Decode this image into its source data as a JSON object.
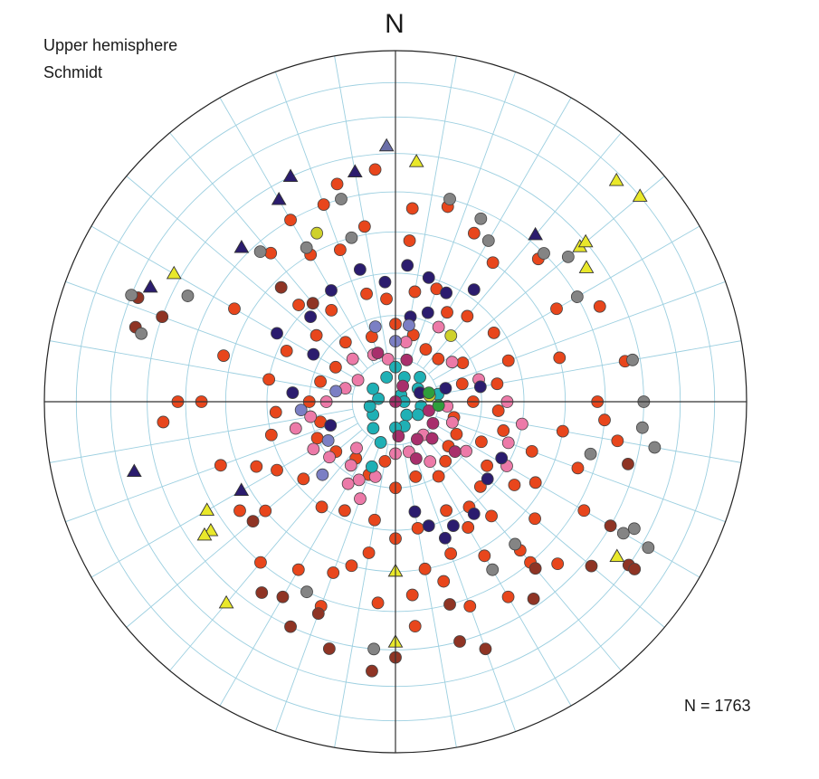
{
  "chart_data": {
    "type": "scatter",
    "title": "",
    "north_label": "N",
    "projection": [
      "Upper hemisphere",
      "Schmidt"
    ],
    "n_label": "N = 1763",
    "coordinate_system": "azimuth_deg (clockwise from north) / plunge_deg",
    "grid": true,
    "grid_style": "polar net, 10 degree intervals",
    "series": [
      {
        "marker": "circle",
        "color": "#e8461c",
        "points": [
          [
            315,
            58
          ],
          [
            330,
            50
          ],
          [
            300,
            46
          ],
          [
            285,
            48
          ],
          [
            270,
            44
          ],
          [
            250,
            46
          ],
          [
            235,
            45
          ],
          [
            220,
            40
          ],
          [
            210,
            44
          ],
          [
            200,
            47
          ],
          [
            195,
            50
          ],
          [
            185,
            42
          ],
          [
            175,
            44
          ],
          [
            165,
            46
          ],
          [
            160,
            52
          ],
          [
            150,
            48
          ],
          [
            140,
            44
          ],
          [
            130,
            47
          ],
          [
            120,
            52
          ],
          [
            110,
            56
          ],
          [
            100,
            50
          ],
          [
            90,
            42
          ],
          [
            75,
            50
          ],
          [
            60,
            46
          ],
          [
            45,
            42
          ],
          [
            35,
            50
          ],
          [
            25,
            46
          ],
          [
            15,
            42
          ],
          [
            5,
            44
          ],
          [
            350,
            48
          ],
          [
            340,
            52
          ],
          [
            325,
            64
          ],
          [
            310,
            66
          ],
          [
            295,
            62
          ],
          [
            280,
            60
          ],
          [
            265,
            62
          ],
          [
            255,
            60
          ],
          [
            240,
            58
          ],
          [
            230,
            62
          ],
          [
            215,
            60
          ],
          [
            205,
            62
          ],
          [
            190,
            62
          ],
          [
            180,
            58
          ],
          [
            170,
            60
          ],
          [
            155,
            62
          ],
          [
            145,
            60
          ],
          [
            135,
            62
          ],
          [
            125,
            64
          ],
          [
            115,
            68
          ],
          [
            105,
            64
          ],
          [
            95,
            66
          ],
          [
            80,
            66
          ],
          [
            70,
            62
          ],
          [
            55,
            62
          ],
          [
            40,
            64
          ],
          [
            30,
            66
          ],
          [
            20,
            62
          ],
          [
            10,
            64
          ],
          [
            355,
            66
          ],
          [
            345,
            64
          ],
          [
            320,
            72
          ],
          [
            300,
            74
          ],
          [
            285,
            72
          ],
          [
            270,
            70
          ],
          [
            255,
            72
          ],
          [
            245,
            70
          ],
          [
            230,
            72
          ],
          [
            215,
            74
          ],
          [
            200,
            72
          ],
          [
            190,
            76
          ],
          [
            180,
            70
          ],
          [
            165,
            72
          ],
          [
            150,
            70
          ],
          [
            140,
            72
          ],
          [
            130,
            74
          ],
          [
            118,
            74
          ],
          [
            105,
            76
          ],
          [
            90,
            72
          ],
          [
            75,
            74
          ],
          [
            60,
            72
          ],
          [
            45,
            76
          ],
          [
            30,
            76
          ],
          [
            15,
            74
          ],
          [
            0,
            72
          ],
          [
            340,
            74
          ],
          [
            270,
            38
          ],
          [
            265,
            34
          ],
          [
            160,
            38
          ],
          [
            150,
            36
          ],
          [
            140,
            40
          ],
          [
            200,
            38
          ],
          [
            175,
            36
          ],
          [
            110,
            44
          ],
          [
            95,
            40
          ],
          [
            355,
            34
          ],
          [
            345,
            36
          ],
          [
            340,
            40
          ],
          [
            65,
            36
          ],
          [
            80,
            34
          ],
          [
            120,
            38
          ],
          [
            135,
            35
          ],
          [
            100,
            36
          ],
          [
            5,
            52
          ],
          [
            320,
            44
          ],
          [
            330,
            40
          ],
          [
            230,
            50
          ],
          [
            245,
            54
          ],
          [
            190,
            54
          ],
          [
            170,
            50
          ],
          [
            125,
            56
          ],
          [
            140,
            55
          ],
          [
            150,
            56
          ]
        ]
      },
      {
        "marker": "circle",
        "color": "#ec7aa8",
        "points": [
          [
            240,
            68
          ],
          [
            230,
            70
          ],
          [
            220,
            76
          ],
          [
            205,
            70
          ],
          [
            195,
            72
          ],
          [
            180,
            78
          ],
          [
            165,
            78
          ],
          [
            150,
            74
          ],
          [
            140,
            80
          ],
          [
            125,
            70
          ],
          [
            110,
            76
          ],
          [
            95,
            78
          ],
          [
            255,
            66
          ],
          [
            260,
            70
          ],
          [
            270,
            74
          ],
          [
            285,
            78
          ],
          [
            300,
            80
          ],
          [
            315,
            76
          ],
          [
            335,
            78
          ],
          [
            350,
            80
          ],
          [
            10,
            76
          ],
          [
            30,
            70
          ],
          [
            55,
            74
          ],
          [
            75,
            70
          ],
          [
            90,
            64
          ],
          [
            100,
            60
          ],
          [
            110,
            62
          ],
          [
            120,
            60
          ],
          [
            200,
            66
          ],
          [
            210,
            68
          ],
          [
            215,
            72
          ]
        ]
      },
      {
        "marker": "circle",
        "color": "#1fb0b5",
        "points": [
          [
            45,
            82
          ],
          [
            60,
            84
          ],
          [
            80,
            80
          ],
          [
            100,
            84
          ],
          [
            120,
            84
          ],
          [
            140,
            86
          ],
          [
            160,
            84
          ],
          [
            180,
            84
          ],
          [
            20,
            84
          ],
          [
            0,
            82
          ],
          [
            340,
            84
          ],
          [
            200,
            80
          ],
          [
            220,
            82
          ],
          [
            240,
            84
          ],
          [
            260,
            84
          ],
          [
            280,
            86
          ],
          [
            300,
            84
          ],
          [
            40,
            88
          ],
          [
            90,
            88
          ],
          [
            200,
            74
          ]
        ]
      },
      {
        "marker": "circle",
        "color": "#a82f6c",
        "points": [
          [
            120,
            80
          ],
          [
            135,
            78
          ],
          [
            150,
            80
          ],
          [
            160,
            76
          ],
          [
            175,
            82
          ],
          [
            105,
            82
          ],
          [
            130,
            72
          ],
          [
            15,
            80
          ],
          [
            25,
            86
          ],
          [
            95,
            90
          ],
          [
            340,
            78
          ]
        ]
      },
      {
        "marker": "circle",
        "color": "#2b1c6e",
        "points": [
          [
            345,
            58
          ],
          [
            330,
            60
          ],
          [
            315,
            62
          ],
          [
            300,
            58
          ],
          [
            15,
            60
          ],
          [
            25,
            62
          ],
          [
            35,
            58
          ],
          [
            5,
            58
          ],
          [
            300,
            68
          ],
          [
            275,
            66
          ],
          [
            250,
            74
          ],
          [
            170,
            64
          ],
          [
            165,
            60
          ],
          [
            160,
            56
          ],
          [
            155,
            58
          ],
          [
            145,
            58
          ],
          [
            130,
            62
          ],
          [
            118,
            62
          ],
          [
            80,
            70
          ],
          [
            75,
            78
          ],
          [
            70,
            84
          ],
          [
            10,
            70
          ],
          [
            20,
            68
          ],
          [
            355,
            62
          ]
        ]
      },
      {
        "marker": "circle",
        "color": "#7b7fc4",
        "points": [
          [
            280,
            76
          ],
          [
            265,
            68
          ],
          [
            240,
            72
          ],
          [
            225,
            66
          ],
          [
            345,
            72
          ],
          [
            0,
            76
          ],
          [
            10,
            72
          ]
        ]
      },
      {
        "marker": "circle",
        "color": "#cfd12b",
        "points": [
          [
            335,
            46
          ],
          [
            40,
            70
          ],
          [
            80,
            82
          ]
        ]
      },
      {
        "marker": "circle",
        "color": "#2f9e3c",
        "points": [
          [
            75,
            82
          ],
          [
            95,
            80
          ]
        ]
      },
      {
        "marker": "circle",
        "color": "#8f3424",
        "points": [
          [
            292,
            22
          ],
          [
            286,
            24
          ],
          [
            290,
            30
          ],
          [
            230,
            46
          ],
          [
            215,
            34
          ],
          [
            205,
            30
          ],
          [
            210,
            36
          ],
          [
            200,
            36
          ],
          [
            195,
            28
          ],
          [
            185,
            24
          ],
          [
            180,
            28
          ],
          [
            165,
            30
          ],
          [
            160,
            26
          ],
          [
            165,
            40
          ],
          [
            140,
            38
          ],
          [
            145,
            32
          ],
          [
            130,
            28
          ],
          [
            125,
            20
          ],
          [
            125,
            18
          ],
          [
            120,
            30
          ],
          [
            105,
            32
          ],
          [
            320,
            60
          ],
          [
            315,
            52
          ]
        ]
      },
      {
        "marker": "circle",
        "color": "#848484",
        "points": [
          [
            292,
            20
          ],
          [
            285,
            26
          ],
          [
            297,
            34
          ],
          [
            318,
            42
          ],
          [
            330,
            48
          ],
          [
            345,
            50
          ],
          [
            345,
            40
          ],
          [
            15,
            40
          ],
          [
            25,
            42
          ],
          [
            30,
            46
          ],
          [
            45,
            40
          ],
          [
            50,
            36
          ],
          [
            60,
            40
          ],
          [
            80,
            32
          ],
          [
            90,
            30
          ],
          [
            96,
            30
          ],
          [
            100,
            26
          ],
          [
            118,
            24
          ],
          [
            120,
            26
          ],
          [
            120,
            18
          ],
          [
            140,
            46
          ],
          [
            150,
            44
          ],
          [
            205,
            40
          ],
          [
            185,
            30
          ],
          [
            105,
            42
          ]
        ]
      }
    ],
    "triangles": [
      {
        "color": "#e9e82a",
        "points": [
          [
            5,
            32
          ],
          [
            45,
            12
          ],
          [
            50,
            10
          ],
          [
            50,
            32
          ],
          [
            50,
            30
          ],
          [
            55,
            34
          ],
          [
            300,
            28
          ],
          [
            240,
            38
          ],
          [
            235,
            36
          ],
          [
            235,
            34
          ],
          [
            180,
            50
          ],
          [
            180,
            32
          ],
          [
            220,
            26
          ],
          [
            125,
            24
          ]
        ]
      },
      {
        "color": "#2b1c6e",
        "points": [
          [
            335,
            30
          ],
          [
            330,
            34
          ],
          [
            350,
            34
          ],
          [
            315,
            38
          ],
          [
            255,
            24
          ],
          [
            295,
            24
          ],
          [
            240,
            48
          ],
          [
            40,
            38
          ]
        ]
      },
      {
        "color": "#6a6ea8",
        "points": [
          [
            358,
            28
          ]
        ]
      }
    ]
  }
}
